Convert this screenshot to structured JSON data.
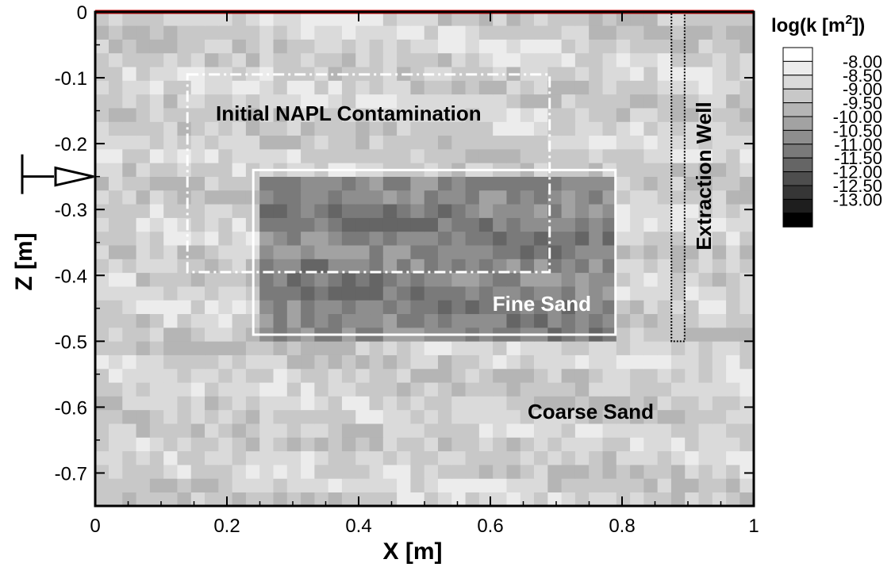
{
  "chart_data": {
    "type": "heatmap",
    "title": "",
    "xlabel": "X [m]",
    "ylabel": "Z [m]",
    "xlim": [
      0,
      1
    ],
    "ylim": [
      -0.75,
      0
    ],
    "x_ticks": [
      "0",
      "0.2",
      "0.4",
      "0.6",
      "0.8",
      "1"
    ],
    "y_ticks": [
      "0",
      "-0.1",
      "-0.2",
      "-0.3",
      "-0.4",
      "-0.5",
      "-0.6",
      "-0.7"
    ],
    "colorbar": {
      "title_prefix": "log(k [m",
      "title_superscript": "2",
      "title_suffix": "])",
      "levels": [
        "-8.00",
        "-8.50",
        "-9.00",
        "-9.50",
        "-10.00",
        "-10.50",
        "-11.00",
        "-11.50",
        "-12.00",
        "-12.50",
        "-13.00"
      ],
      "colors": [
        "#ffffff",
        "#ececec",
        "#dadada",
        "#c8c8c8",
        "#b5b5b5",
        "#a2a2a2",
        "#8e8e8e",
        "#7a7a7a",
        "#656565",
        "#4e4e4e",
        "#363636",
        "#1e1e1e",
        "#000000"
      ]
    },
    "regions": [
      {
        "label": "Fine Sand",
        "x": [
          0.24,
          0.79
        ],
        "z": [
          -0.49,
          -0.24
        ],
        "log_k": -11.0
      },
      {
        "label": "Coarse Sand",
        "log_k": -9.0
      }
    ],
    "annotations": {
      "napl": {
        "label": "Initial NAPL Contamination",
        "x": [
          0.14,
          0.69
        ],
        "z": [
          -0.395,
          -0.095
        ]
      },
      "well": {
        "label": "Extraction Well",
        "x": [
          0.875,
          0.895
        ],
        "z": [
          -0.5,
          0
        ]
      },
      "inflow_z": -0.25
    },
    "colors": {
      "top_boundary": "#cc0000",
      "region_outline": "#ffffff",
      "well_outline": "#000000"
    }
  }
}
